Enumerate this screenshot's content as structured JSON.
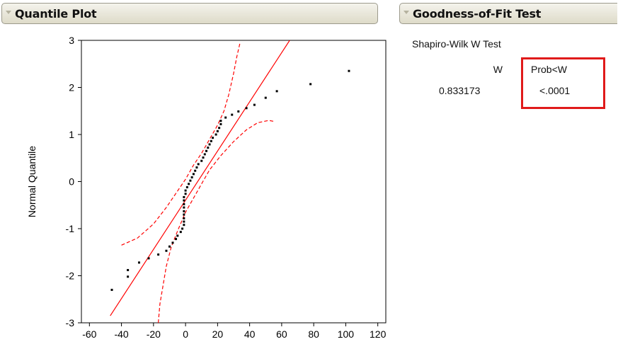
{
  "panels": {
    "quantile_plot": {
      "title": "Quantile Plot"
    },
    "goodness_of_fit": {
      "title": "Goodness-of-Fit Test",
      "test_name": "Shapiro-Wilk W Test",
      "w_header": "W",
      "prob_header": "Prob<W",
      "w_value": "0.833173",
      "prob_value": "<.0001",
      "highlight_color": "#e01a1a"
    }
  },
  "chart_data": {
    "type": "scatter",
    "title": "",
    "xlabel": "",
    "ylabel": "Normal Quantile",
    "xlim": [
      -65,
      125
    ],
    "ylim": [
      -3,
      3
    ],
    "x_ticks": [
      -60,
      -40,
      -20,
      0,
      20,
      40,
      60,
      80,
      100,
      120
    ],
    "y_ticks": [
      -3,
      -2,
      -1,
      0,
      1,
      2,
      3
    ],
    "grid": false,
    "colors": {
      "points": "#000000",
      "fit_line": "#ff0000",
      "confidence_band": "#ff0000"
    },
    "points": [
      {
        "x": -46,
        "y": -2.3
      },
      {
        "x": -36,
        "y": -1.88
      },
      {
        "x": -36,
        "y": -2.02
      },
      {
        "x": -29,
        "y": -1.72
      },
      {
        "x": -23,
        "y": -1.63
      },
      {
        "x": -17,
        "y": -1.55
      },
      {
        "x": -12,
        "y": -1.47
      },
      {
        "x": -10,
        "y": -1.38
      },
      {
        "x": -8,
        "y": -1.3
      },
      {
        "x": -6,
        "y": -1.22
      },
      {
        "x": -5,
        "y": -1.15
      },
      {
        "x": -3,
        "y": -1.07
      },
      {
        "x": -2,
        "y": -1.0
      },
      {
        "x": -1,
        "y": -0.92
      },
      {
        "x": -1,
        "y": -0.85
      },
      {
        "x": -1,
        "y": -0.78
      },
      {
        "x": -1,
        "y": -0.7
      },
      {
        "x": -1,
        "y": -0.63
      },
      {
        "x": -1,
        "y": -0.55
      },
      {
        "x": -1,
        "y": -0.48
      },
      {
        "x": -1,
        "y": -0.4
      },
      {
        "x": -1,
        "y": -0.33
      },
      {
        "x": 0,
        "y": -0.26
      },
      {
        "x": 0,
        "y": -0.19
      },
      {
        "x": 1,
        "y": -0.12
      },
      {
        "x": 2,
        "y": -0.05
      },
      {
        "x": 3,
        "y": 0.02
      },
      {
        "x": 4,
        "y": 0.09
      },
      {
        "x": 5,
        "y": 0.16
      },
      {
        "x": 6,
        "y": 0.23
      },
      {
        "x": 7,
        "y": 0.3
      },
      {
        "x": 8,
        "y": 0.37
      },
      {
        "x": 10,
        "y": 0.44
      },
      {
        "x": 11,
        "y": 0.51
      },
      {
        "x": 12,
        "y": 0.58
      },
      {
        "x": 13,
        "y": 0.65
      },
      {
        "x": 14,
        "y": 0.72
      },
      {
        "x": 15,
        "y": 0.79
      },
      {
        "x": 16,
        "y": 0.86
      },
      {
        "x": 17,
        "y": 0.93
      },
      {
        "x": 19,
        "y": 1.0
      },
      {
        "x": 20,
        "y": 1.07
      },
      {
        "x": 21,
        "y": 1.14
      },
      {
        "x": 22,
        "y": 1.22
      },
      {
        "x": 22,
        "y": 1.29
      },
      {
        "x": 25,
        "y": 1.36
      },
      {
        "x": 29,
        "y": 1.42
      },
      {
        "x": 33,
        "y": 1.49
      },
      {
        "x": 38,
        "y": 1.56
      },
      {
        "x": 43,
        "y": 1.63
      },
      {
        "x": 50,
        "y": 1.78
      },
      {
        "x": 57,
        "y": 1.92
      },
      {
        "x": 78,
        "y": 2.07
      },
      {
        "x": 102,
        "y": 2.35
      }
    ],
    "fit_line": [
      {
        "x": -47,
        "y": -2.85
      },
      {
        "x": 65,
        "y": 3.0
      }
    ],
    "confidence_band_upper": [
      {
        "x": -40,
        "y": -1.35
      },
      {
        "x": -30,
        "y": -1.2
      },
      {
        "x": -20,
        "y": -0.9
      },
      {
        "x": -12,
        "y": -0.55
      },
      {
        "x": -5,
        "y": -0.2
      },
      {
        "x": 0,
        "y": 0.05
      },
      {
        "x": 5,
        "y": 0.35
      },
      {
        "x": 10,
        "y": 0.6
      },
      {
        "x": 15,
        "y": 0.9
      },
      {
        "x": 20,
        "y": 1.2
      },
      {
        "x": 24,
        "y": 1.5
      },
      {
        "x": 27,
        "y": 1.85
      },
      {
        "x": 30,
        "y": 2.3
      },
      {
        "x": 32,
        "y": 2.65
      },
      {
        "x": 34,
        "y": 2.95
      }
    ],
    "confidence_band_lower": [
      {
        "x": -17,
        "y": -3.0
      },
      {
        "x": -16,
        "y": -2.6
      },
      {
        "x": -14,
        "y": -2.2
      },
      {
        "x": -12,
        "y": -1.8
      },
      {
        "x": -9,
        "y": -1.4
      },
      {
        "x": -5,
        "y": -1.05
      },
      {
        "x": 0,
        "y": -0.65
      },
      {
        "x": 5,
        "y": -0.35
      },
      {
        "x": 10,
        "y": -0.05
      },
      {
        "x": 15,
        "y": 0.25
      },
      {
        "x": 22,
        "y": 0.55
      },
      {
        "x": 30,
        "y": 0.85
      },
      {
        "x": 38,
        "y": 1.1
      },
      {
        "x": 45,
        "y": 1.25
      },
      {
        "x": 52,
        "y": 1.3
      },
      {
        "x": 55,
        "y": 1.28
      }
    ]
  }
}
